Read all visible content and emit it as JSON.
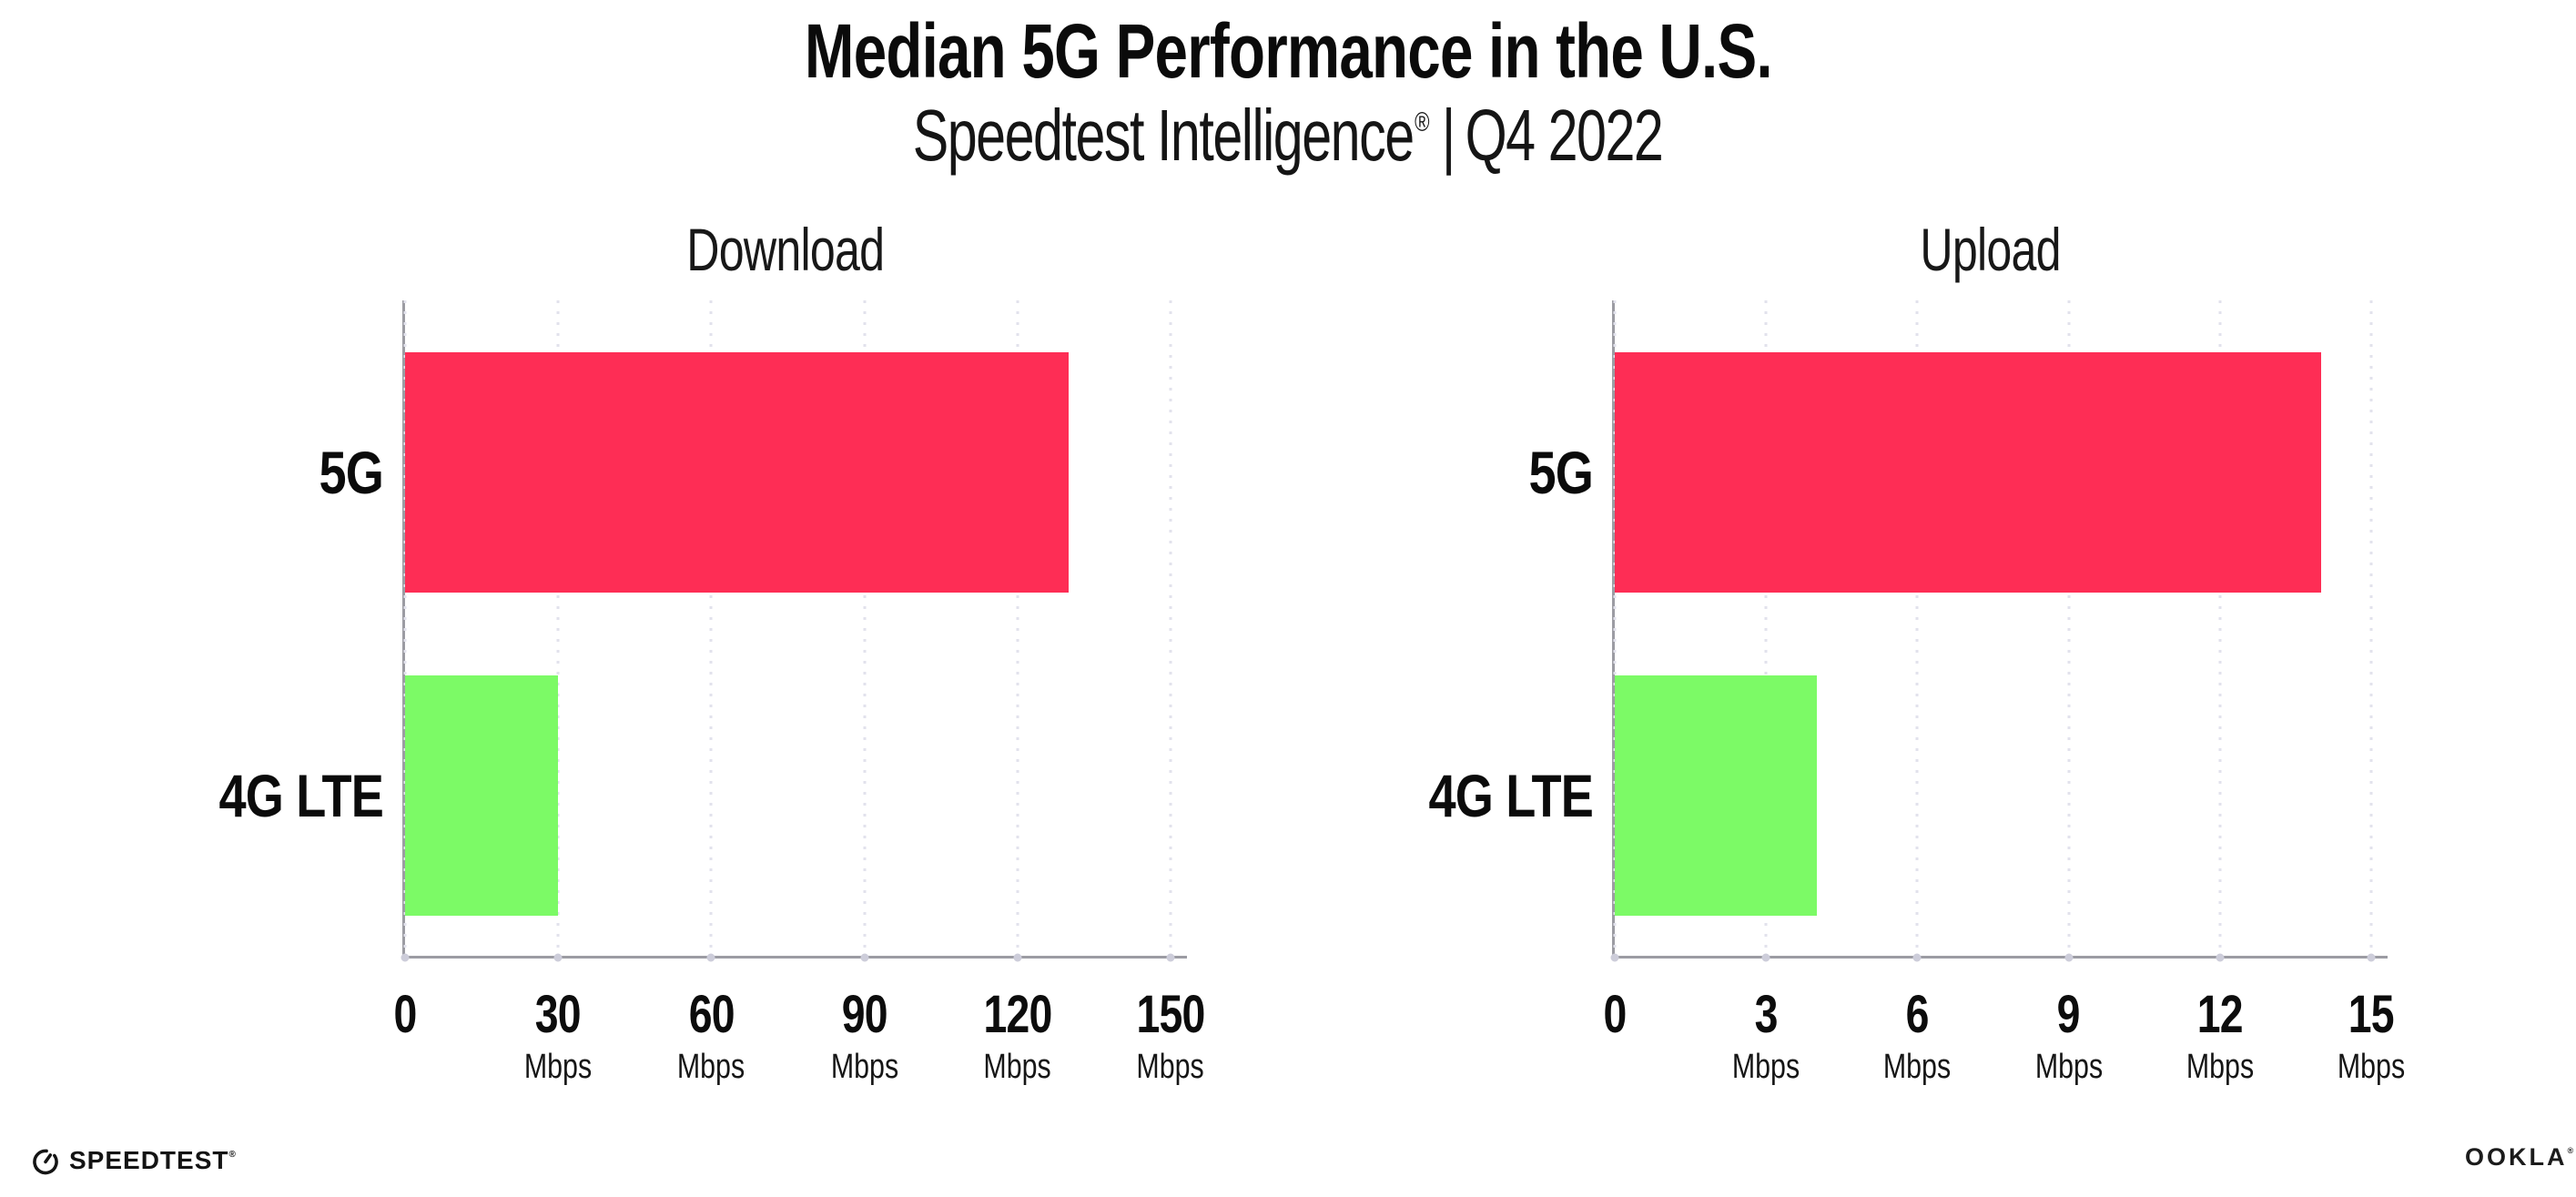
{
  "header": {
    "title": "Median 5G Performance in the U.S.",
    "subtitle_product": "Speedtest Intelligence",
    "subtitle_reg": "®",
    "subtitle_separator": "|",
    "subtitle_period": "Q4 2022"
  },
  "footer": {
    "speedtest_logo_text": "SPEEDTEST",
    "speedtest_reg": "®",
    "ookla_logo_text": "OOKLA",
    "ookla_reg": "®"
  },
  "colors": {
    "bar_5g": "#fe2d55",
    "bar_4g_lte": "#7cfa66",
    "axis": "#9c9ca3",
    "gridline": "#e2e2ec",
    "text": "#0c0c0c"
  },
  "chart_data": [
    {
      "type": "bar",
      "orientation": "horizontal",
      "title": "Download",
      "categories": [
        "5G",
        "4G LTE"
      ],
      "values": [
        130,
        30
      ],
      "unit": "Mbps",
      "xlabel": "",
      "ylabel": "",
      "xlim": [
        0,
        150
      ],
      "xticks": [
        0,
        30,
        60,
        90,
        120,
        150
      ],
      "grid": "vertical dotted gridlines at each tick",
      "legend": "none",
      "bar_colors": [
        "#fe2d55",
        "#7cfa66"
      ]
    },
    {
      "type": "bar",
      "orientation": "horizontal",
      "title": "Upload",
      "categories": [
        "5G",
        "4G LTE"
      ],
      "values": [
        14,
        4
      ],
      "unit": "Mbps",
      "xlabel": "",
      "ylabel": "",
      "xlim": [
        0,
        15
      ],
      "xticks": [
        0,
        3,
        6,
        9,
        12,
        15
      ],
      "grid": "vertical dotted gridlines at each tick",
      "legend": "none",
      "bar_colors": [
        "#fe2d55",
        "#7cfa66"
      ]
    }
  ]
}
